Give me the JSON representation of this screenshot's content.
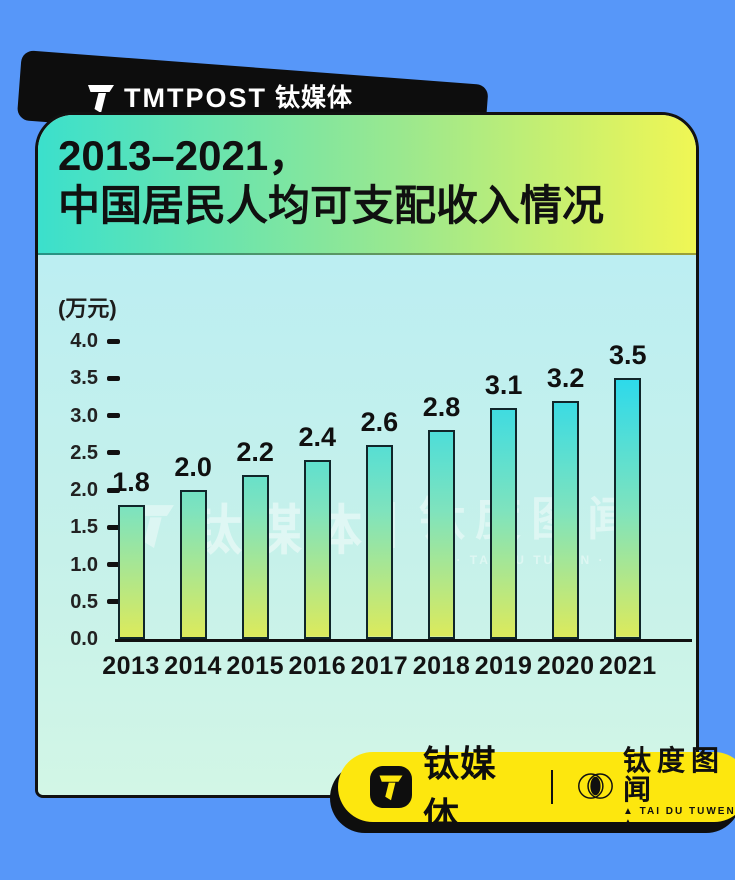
{
  "page": {
    "background_color": "#5797f9",
    "accent_yellow": "#fde70e",
    "banner_black": "#0d0d0d"
  },
  "header": {
    "brand_en": "TMTPOST",
    "brand_cn": "钛媒体"
  },
  "title_card": {
    "line1": "2013–2021，",
    "line2": "中国居民人均可支配收入情况",
    "gradient_from": "#3be0cc",
    "gradient_to": "#f0f654"
  },
  "chart_data": {
    "type": "bar",
    "title": "2013–2021，中国居民人均可支配收入情况",
    "ylabel": "(万元)",
    "xlabel": "",
    "categories": [
      "2013",
      "2014",
      "2015",
      "2016",
      "2017",
      "2018",
      "2019",
      "2020",
      "2021"
    ],
    "values": [
      1.8,
      2.0,
      2.2,
      2.4,
      2.6,
      2.8,
      3.1,
      3.2,
      3.5
    ],
    "value_labels": [
      "1.8",
      "2.0",
      "2.2",
      "2.4",
      "2.6",
      "2.8",
      "3.1",
      "3.2",
      "3.5"
    ],
    "ylim": [
      0.0,
      4.0
    ],
    "ytick_labels": [
      "4.0",
      "3.5",
      "3.0",
      "2.5",
      "2.0",
      "1.5",
      "1.0",
      "0.5",
      "0.0"
    ],
    "grid": "off",
    "legend": "none",
    "bar_gradient_top": "#2bd9ec",
    "bar_gradient_bottom": "#dcea5c"
  },
  "watermark": {
    "left_text": "钛媒体",
    "right_text": "钛度图闻",
    "right_sub": "· TAI DU TUWEN ·"
  },
  "footer": {
    "brand": "钛媒体",
    "taidu_name": "钛度图闻",
    "taidu_sub": "▲ TAI DU TUWEN ▲"
  }
}
